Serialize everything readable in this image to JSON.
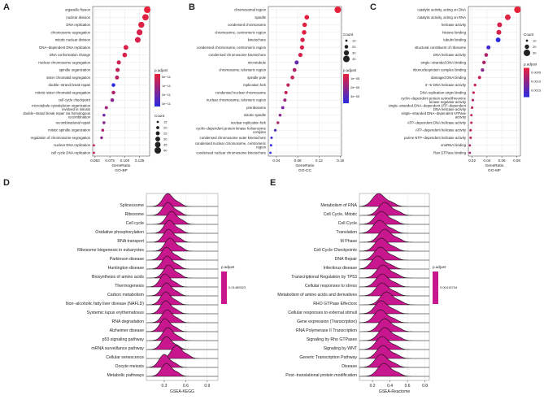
{
  "chart_data": [
    {
      "panel": "A",
      "type": "scatter",
      "xlabel": "GeneRatio",
      "subtitle": "GO-BP",
      "xlim": [
        0.046,
        0.142
      ],
      "xticks": [
        "0.050",
        "0.075",
        "0.100",
        "0.125"
      ],
      "categories": [
        "organelle fission",
        "nuclear division",
        "DNA replication",
        "chromosome segregation",
        "mitotic nuclear division",
        "DNA−dependent DNA replication",
        "DNA conformation change",
        "nuclear chromosome segregation",
        "spindle organization",
        "sister chromatid segregation",
        "double−strand break repair",
        "mitotic sister chromatid segregation",
        "cell cycle checkpoint",
        "microtubule cytoskeleton organization involved in mitosis",
        "double−strand break repair via homologous recombination",
        "recombinational repair",
        "mitotic spindle organization",
        "regulation of chromosome segregation",
        "nuclear DNA replication",
        "cell cycle DNA replication"
      ],
      "values": [
        0.138,
        0.135,
        0.128,
        0.125,
        0.122,
        0.102,
        0.1,
        0.09,
        0.088,
        0.087,
        0.081,
        0.081,
        0.079,
        0.069,
        0.065,
        0.065,
        0.063,
        0.061,
        0.048,
        0.048
      ],
      "counts": [
        42,
        41,
        39,
        38,
        37,
        31,
        30,
        27,
        27,
        26,
        24,
        24,
        24,
        21,
        19,
        19,
        19,
        18,
        15,
        15
      ],
      "padj_frac": [
        0.0,
        0.05,
        0.05,
        0.1,
        0.1,
        0.08,
        0.1,
        0.15,
        0.2,
        0.25,
        1.0,
        0.3,
        0.5,
        0.4,
        0.6,
        0.5,
        0.3,
        0.5,
        0.2,
        0.2
      ],
      "legend": {
        "color_title": "p.adjust",
        "color_ticks": [
          "5e−11",
          "1e−11",
          "2e−11",
          "3e−11"
        ],
        "size_title": "Count",
        "size_ticks": [
          "15",
          "20",
          "25",
          "30",
          "35",
          "40"
        ]
      }
    },
    {
      "panel": "B",
      "type": "scatter",
      "xlabel": "GeneRatio",
      "subtitle": "GO-CC",
      "xlim": [
        0.025,
        0.162
      ],
      "xticks": [
        "0.04",
        "0.08",
        "0.12",
        "0.16"
      ],
      "categories": [
        "chromosomal region",
        "spindle",
        "condensed chromosome",
        "chromosome, centromeric region",
        "kinetochore",
        "condensed chromosome, centromeric region",
        "condensed chromosome kinetochore",
        "microtubule",
        "chromosome, telomeric region",
        "spindle pole",
        "replication fork",
        "condensed nuclear chromosome",
        "nuclear chromosome, telomeric region",
        "preribosome",
        "mitotic spindle",
        "nuclear replication fork",
        "cyclin−dependent protein kinase holoenzyme complex",
        "condensed chromosome outer kinetochore",
        "condensed nuclear chromosome, centromeric region",
        "condensed nuclear chromosome kinetochore"
      ],
      "values": [
        0.155,
        0.097,
        0.093,
        0.092,
        0.089,
        0.088,
        0.085,
        0.078,
        0.074,
        0.07,
        0.062,
        0.058,
        0.056,
        0.052,
        0.047,
        0.043,
        0.038,
        0.031,
        0.03,
        0.029
      ],
      "counts": [
        42,
        27,
        26,
        26,
        25,
        24,
        24,
        22,
        21,
        20,
        17,
        16,
        16,
        15,
        13,
        12,
        11,
        9,
        9,
        8
      ],
      "padj_frac": [
        0.0,
        0.05,
        0.05,
        0.05,
        0.1,
        0.1,
        0.1,
        0.7,
        0.3,
        0.2,
        0.2,
        0.2,
        0.4,
        0.6,
        0.5,
        0.3,
        0.8,
        0.9,
        1.0,
        1.0
      ],
      "legend": {
        "color_title": "p.adjust",
        "color_ticks": [
          "1e−05",
          "2e−05",
          "3e−05"
        ],
        "size_title": "Count",
        "size_ticks": [
          "10",
          "20",
          "30",
          "40"
        ]
      }
    },
    {
      "panel": "C",
      "type": "scatter",
      "xlabel": "GeneRatio",
      "subtitle": "GO-MF",
      "xlim": [
        0.015,
        0.085
      ],
      "xticks": [
        "0.02",
        "0.04",
        "0.06",
        "0.08"
      ],
      "categories": [
        "catalytic activity, acting on DNA",
        "catalytic activity, acting on RNA",
        "helicase activity",
        "histone binding",
        "tubulin binding",
        "structural constituent of ribosome",
        "DNA helicase activity",
        "single−stranded DNA binding",
        "ribonucleoprotein complex binding",
        "damaged DNA binding",
        "3′−5′ DNA helicase activity",
        "DNA replication origin binding",
        "cyclin−dependent protein serine/threonine kinase regulator activity",
        "single−stranded DNA−dependent ATP−dependent DNA helicase activity",
        "single−stranded DNA−dependent ATPase activity",
        "ATP−dependent DNA helicase activity",
        "ATP−dependent helicase activity",
        "purine NTP−dependent helicase activity",
        "snoRNA binding",
        "Ran GTPase binding"
      ],
      "values": [
        0.081,
        0.068,
        0.057,
        0.056,
        0.055,
        0.042,
        0.039,
        0.036,
        0.034,
        0.03,
        0.024,
        0.022,
        0.021,
        0.02,
        0.019,
        0.019,
        0.018,
        0.018,
        0.017,
        0.017
      ],
      "counts": [
        36,
        30,
        25,
        25,
        24,
        19,
        17,
        16,
        15,
        13,
        10,
        9,
        9,
        9,
        8,
        8,
        8,
        8,
        7,
        7
      ],
      "padj_frac": [
        0.0,
        0.05,
        0.1,
        0.1,
        1.0,
        0.9,
        0.3,
        0.3,
        0.5,
        0.2,
        0.2,
        0.2,
        0.3,
        0.2,
        0.2,
        0.2,
        0.2,
        0.2,
        0.3,
        0.3
      ],
      "legend": {
        "color_title": "p.adjust",
        "color_ticks": [
          "0.0005",
          "0.0010",
          "0.0015"
        ],
        "size_title": "Count",
        "size_ticks": [
          "10",
          "20",
          "30"
        ]
      }
    },
    {
      "panel": "D",
      "type": "area",
      "xlabel": "GSEA-KEGG",
      "xlim": [
        0.05,
        1.05
      ],
      "xticks": [
        "0.3",
        "0.6",
        "0.9"
      ],
      "categories": [
        "Spliceosome",
        "Ribosome",
        "Cell cycle",
        "Oxidative phosphorylation",
        "RNA transport",
        "Ribosome biogenesis in eukaryotes",
        "Parkinson disease",
        "Huntington disease",
        "Biosynthesis of amino acids",
        "Thermogenesis",
        "Carbon metabolism",
        "Non−alcoholic fatty liver disease (NAFLD)",
        "Systemic lupus erythematosus",
        "RNA degradation",
        "Alzheimer disease",
        "p53 signaling pathway",
        "mRNA surveillance pathway",
        "Cellular senescence",
        "Oocyte meiosis",
        "Metabolic pathways"
      ],
      "peaks": [
        0.35,
        0.35,
        0.4,
        0.37,
        0.36,
        0.38,
        0.33,
        0.34,
        0.36,
        0.31,
        0.33,
        0.32,
        0.32,
        0.34,
        0.31,
        0.35,
        0.33,
        0.47,
        0.3,
        0.33
      ],
      "legend": {
        "color_title": "p.adjust",
        "color_value": "0.01489523"
      }
    },
    {
      "panel": "E",
      "type": "area",
      "xlabel": "GSEA-Reactome",
      "xlim": [
        0.05,
        0.85
      ],
      "xticks": [
        "0.2",
        "0.4",
        "0.6",
        "0.8"
      ],
      "categories": [
        "Metabolism of RNA",
        "Cell Cycle, Mitotic",
        "Cell Cycle",
        "Translation",
        "M Phase",
        "Cell Cycle Checkpoints",
        "DNA Repair",
        "Infectious disease",
        "Transcriptional Regulation by TP53",
        "Cellular responses to stress",
        "Metabolism of amino acids and derivatives",
        "RHO GTPase Effectors",
        "Cellular responses to external stimuli",
        "Gene expression (Transcription)",
        "RNA Polymerase II Transcription",
        "Signaling by Rho GTPases",
        "Signaling by WNT",
        "Generic Transcription Pathway",
        "Disease",
        "Post−translational protein modification"
      ],
      "peaks": [
        0.27,
        0.34,
        0.3,
        0.28,
        0.34,
        0.3,
        0.29,
        0.26,
        0.32,
        0.31,
        0.31,
        0.36,
        0.3,
        0.29,
        0.34,
        0.34,
        0.31,
        0.32,
        0.3,
        0.33
      ],
      "legend": {
        "color_title": "p.adjust",
        "color_value": "0.00415734"
      }
    }
  ],
  "colors": {
    "high": "#e8203a",
    "low": "#2b2be0",
    "ridge_fill": "#c8168e"
  }
}
